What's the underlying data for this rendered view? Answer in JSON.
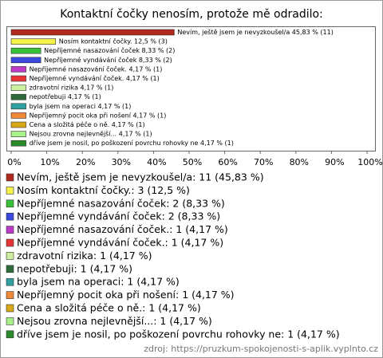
{
  "chart_data": {
    "type": "bar",
    "orientation": "horizontal",
    "title": "Kontaktní čočky nenosím, protože mě odradilo:",
    "categories": [
      "Nevím, ještě jsem je nevyzkoušel/a",
      "Nosím kontaktní čočky.",
      "Nepříjemné nasazování čoček",
      "Nepříjemné vyndávání čoček",
      "Nepříjemné nasazování čoček.",
      "Nepříjemné vyndávání čoček.",
      "zdravotní rizika",
      "nepotřebuji",
      "byla jsem na operaci",
      "Nepříjemný pocit oka při nošení",
      "Cena a složitá péče o ně.",
      "Nejsou zrovna nejlevnější...",
      "dříve jsem je nosil, po poškození povrchu rohovky ne"
    ],
    "values": [
      45.83,
      12.5,
      8.33,
      8.33,
      4.17,
      4.17,
      4.17,
      4.17,
      4.17,
      4.17,
      4.17,
      4.17,
      4.17
    ],
    "value_labels": [
      "Nevím, ještě jsem je nevyzkoušel/a 45,83 % (11)",
      "Nosím kontaktní čočky. 12,5 % (3)",
      "Nepříjemné nasazování čoček 8,33 % (2)",
      "Nepříjemné vyndávání čoček 8,33 % (2)",
      "Nepříjemné nasazování čoček. 4,17 % (1)",
      "Nepříjemné vyndávání čoček. 4,17 % (1)",
      "zdravotní rizika 4,17 % (1)",
      "nepotřebuji 4,17 % (1)",
      "byla jsem na operaci 4,17 % (1)",
      "Nepříjemný pocit oka při nošení 4,17 % (1)",
      "Cena a složitá péče o ně. 4,17 % (1)",
      "Nejsou zrovna nejlevnější... 4,17 % (1)",
      "dříve jsem je nosil, po poškození povrchu rohovky ne 4,17 % (1)"
    ],
    "legend_labels": [
      "Nevím, ještě jsem je nevyzkoušel/a: 11 (45,83 %)",
      "Nosím kontaktní čočky.: 3 (12,5 %)",
      "Nepříjemné nasazování čoček: 2 (8,33 %)",
      "Nepříjemné vyndávání čoček: 2 (8,33 %)",
      "Nepříjemné nasazování čoček.: 1 (4,17 %)",
      "Nepříjemné vyndávání čoček.: 1 (4,17 %)",
      "zdravotní rizika: 1 (4,17 %)",
      "nepotřebuji: 1 (4,17 %)",
      "byla jsem na operaci: 1 (4,17 %)",
      "Nepříjemný pocit oka při nošení: 1 (4,17 %)",
      "Cena a složitá péče o ně.: 1 (4,17 %)",
      "Nejsou zrovna nejlevnější...: 1 (4,17 %)",
      "dříve jsem je nosil, po poškození povrchu rohovky ne: 1 (4,17 %)"
    ],
    "colors": [
      "#b0281e",
      "#f5f04a",
      "#38c038",
      "#3a48e0",
      "#c03ac8",
      "#e83434",
      "#ccf0a0",
      "#2e6a3a",
      "#30a0a0",
      "#f08a38",
      "#d8a818",
      "#a8f08a",
      "#2a8a2a"
    ],
    "xlim": [
      0,
      100
    ],
    "xticks": [
      {
        "value": 0,
        "label": "0%"
      },
      {
        "value": 10,
        "label": "10%"
      },
      {
        "value": 20,
        "label": "20%"
      },
      {
        "value": 30,
        "label": "30%"
      },
      {
        "value": 40,
        "label": "40%"
      },
      {
        "value": 50,
        "label": "50%"
      },
      {
        "value": 60,
        "label": "60%"
      },
      {
        "value": 70,
        "label": "70%"
      },
      {
        "value": 80,
        "label": "80%"
      },
      {
        "value": 90,
        "label": "90%"
      },
      {
        "value": 100,
        "label": "100%"
      }
    ],
    "source": "zdroj: https://pruzkum-spokojenosti-s-aplik.vyplnto.cz"
  }
}
